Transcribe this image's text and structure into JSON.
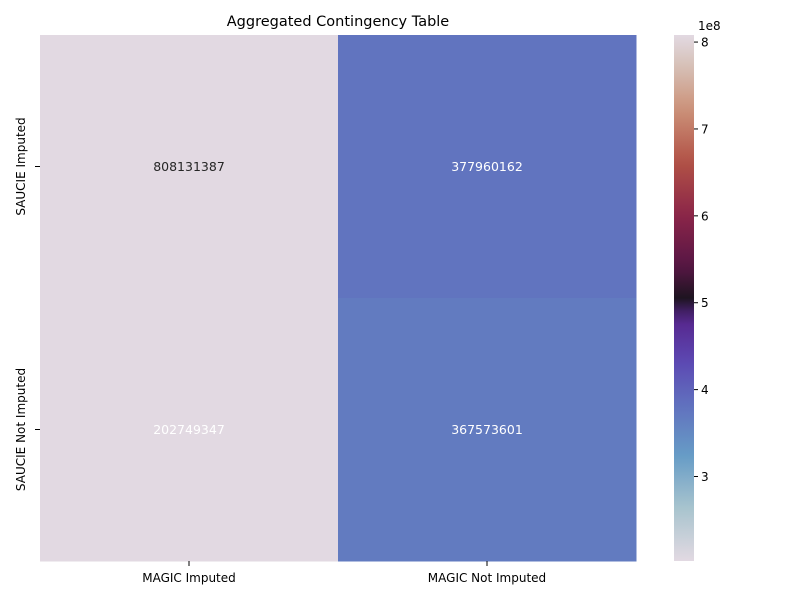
{
  "chart_data": {
    "type": "heatmap",
    "title": "Aggregated Contingency Table",
    "xlabel": "",
    "ylabel": "",
    "x_categories": [
      "MAGIC Imputed",
      "MAGIC Not Imputed"
    ],
    "y_categories": [
      "SAUCIE Imputed",
      "SAUCIE Not Imputed"
    ],
    "values": [
      [
        808131387,
        377960162
      ],
      [
        202749347,
        367573601
      ]
    ],
    "value_labels": [
      [
        "808131387",
        "377960162"
      ],
      [
        "202749347",
        "367573601"
      ]
    ],
    "colorbar": {
      "colormap": "twilight",
      "min": 202749347,
      "max": 808131387,
      "ticks": [
        3,
        4,
        5,
        6,
        7,
        8
      ],
      "tick_labels": [
        "3",
        "4",
        "5",
        "6",
        "7",
        "8"
      ],
      "scale_label": "1e8",
      "tick_multiplier": 100000000
    },
    "grid": false,
    "legend": "none"
  }
}
